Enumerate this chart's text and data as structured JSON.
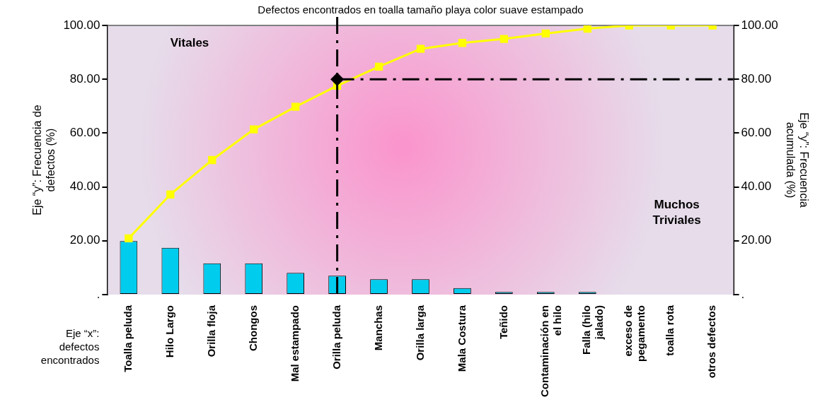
{
  "chart_data": {
    "type": "bar",
    "title": "Defectos encontrados en toalla tamaño playa color suave estampado",
    "ylabel": "Eje “y”:  Frecuencia de defectos (%)",
    "y2label": "Eje “y”:    Frecuencia acumulada (%)",
    "xlabel": "Eje “x”: defectos encontrados",
    "categories": [
      "Toalla peluda",
      "Hilo Largo",
      "Orilla floja",
      "Chongos",
      "Mal estampado",
      "Orilla peluda",
      "Manchas",
      "Orilla larga",
      "Mala Costura",
      "Teñido",
      "Contaminación en el hilo",
      "Falla (hilo jalado)",
      "exceso de pegamento",
      "toalla rota",
      "otros defectos"
    ],
    "series": [
      {
        "color": "#00ccee",
        "values": [
          19.9,
          17.4,
          11.6,
          11.6,
          8.1,
          7.0,
          5.7,
          5.7,
          2.4,
          1.0,
          1.0,
          1.0,
          0,
          0,
          0
        ]
      },
      {
        "type": "line",
        "axis": "y2",
        "color": "#ffff00",
        "marker": "square",
        "values": [
          20.9,
          37.2,
          50,
          61.4,
          69.8,
          77.6,
          84.7,
          91.3,
          93.5,
          95,
          97,
          98.8,
          100,
          100,
          100
        ]
      },
      {
        "type": "scatter",
        "axis": "y2",
        "color": "#000000",
        "marker": "diamond",
        "x": [
          "Orilla peluda"
        ],
        "values": [
          80
        ]
      }
    ],
    "ylim": [
      0,
      100
    ],
    "yticks": [
      {
        "value": 0,
        "label": "."
      },
      {
        "value": 20,
        "label": "20.00"
      },
      {
        "value": 40,
        "label": "40.00"
      },
      {
        "value": 60,
        "label": "60.00"
      },
      {
        "value": 80,
        "label": "80.00"
      },
      {
        "value": 100,
        "label": "100.00"
      }
    ],
    "y2lim": [
      0,
      100
    ],
    "y2ticks": [
      {
        "value": 0,
        "label": "."
      },
      {
        "value": 20,
        "label": "20.00"
      },
      {
        "value": 40,
        "label": "40.00"
      },
      {
        "value": 60,
        "label": "60.00"
      },
      {
        "value": 80,
        "label": "80.00"
      },
      {
        "value": 100,
        "label": "100.00"
      }
    ],
    "ref_lines": [
      {
        "axis": "y2",
        "value": 80,
        "color": "#000000",
        "line_style": "dashed"
      },
      {
        "axis": "x",
        "value": "Orilla peluda",
        "color": "#000000",
        "line_style": "dashed"
      }
    ],
    "annotations": [
      "Vitales",
      "Muchos Triviales"
    ],
    "grid": false,
    "legend": false
  }
}
